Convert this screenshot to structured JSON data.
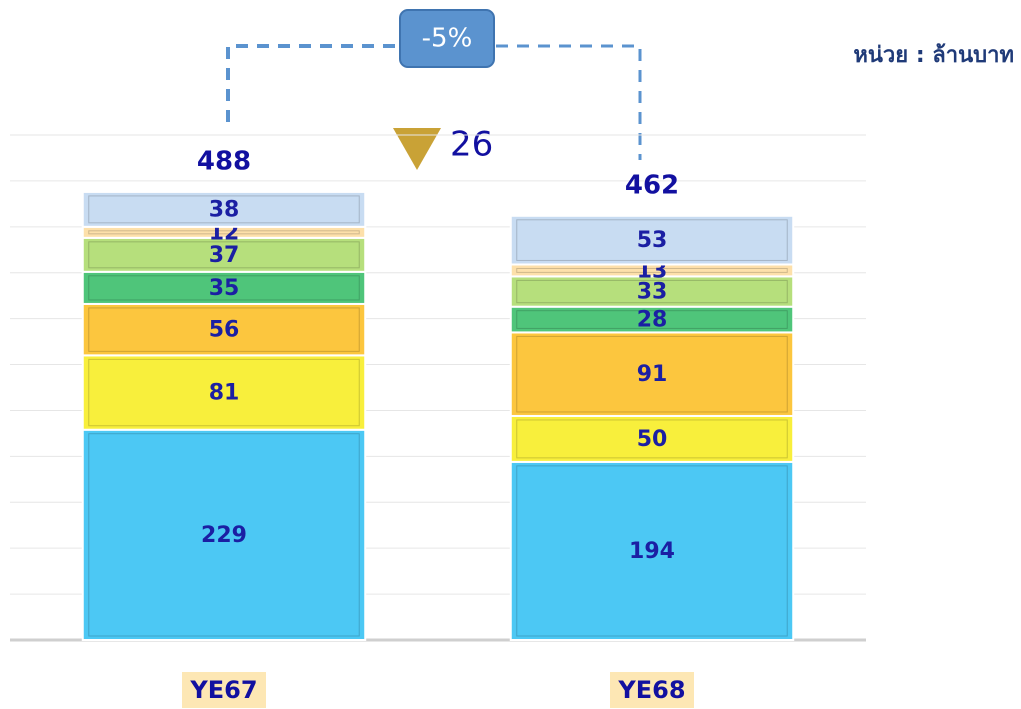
{
  "chart_data": {
    "type": "stacked_bar",
    "categories": [
      "YE67",
      "YE68"
    ],
    "series": [
      {
        "color": "#4cc8f4",
        "values": [
          229,
          194
        ]
      },
      {
        "color": "#f8ef3c",
        "values": [
          81,
          50
        ]
      },
      {
        "color": "#fcc63e",
        "values": [
          56,
          91
        ]
      },
      {
        "color": "#4fc57a",
        "values": [
          35,
          28
        ]
      },
      {
        "color": "#b6df7c",
        "values": [
          37,
          33
        ]
      },
      {
        "color": "#fde0aa",
        "values": [
          12,
          13
        ]
      },
      {
        "color": "#c8dcf2",
        "values": [
          38,
          53
        ]
      }
    ],
    "totals": [
      488,
      462
    ],
    "ylim": [
      0,
      550
    ],
    "yticks": [
      0,
      50,
      100,
      150,
      200,
      250,
      300,
      350,
      400,
      450,
      500,
      550
    ],
    "grid": true,
    "annotations": {
      "change_percent": "-5%",
      "change_value": "26",
      "unit": "หน่วย : ล้านบาท"
    }
  }
}
